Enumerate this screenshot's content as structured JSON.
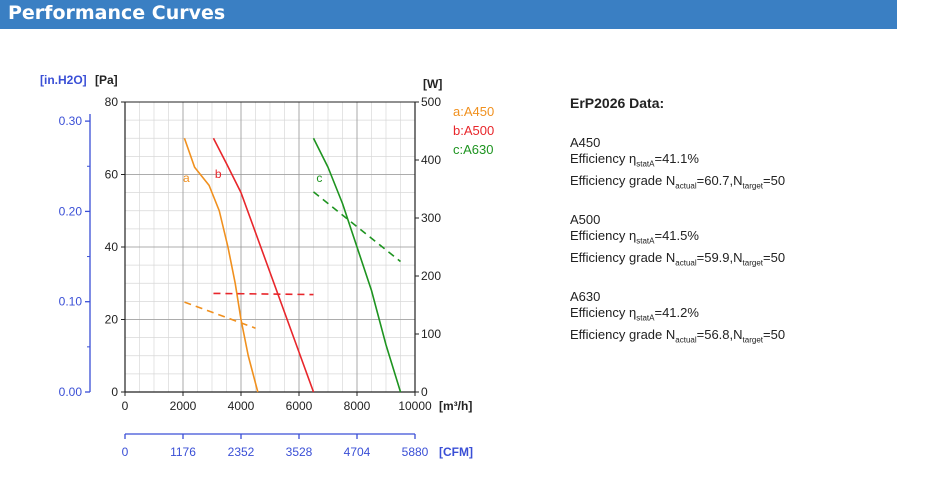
{
  "header": {
    "title": "Performance Curves"
  },
  "chart_data": {
    "type": "line",
    "units": {
      "left_outer": "[in.H2O]",
      "left_inner": "[Pa]",
      "right": "[W]",
      "x": "[m³/h]",
      "x_bottom": "[CFM]"
    },
    "x_ticks": [
      0,
      2000,
      4000,
      6000,
      8000,
      10000
    ],
    "x_tick_labels": [
      "0",
      "2000",
      "4000",
      "6000",
      "8000",
      "10000"
    ],
    "cfm_tick_labels": [
      "0",
      "1176",
      "2352",
      "3528",
      "4704",
      "5880"
    ],
    "pa_ticks": [
      0,
      20,
      40,
      60,
      80
    ],
    "pa_tick_labels": [
      "0",
      "20",
      "40",
      "60",
      "80"
    ],
    "inh2o_ticks": [
      0.0,
      0.1,
      0.2,
      0.3
    ],
    "inh2o_tick_labels": [
      "0.00",
      "0.10",
      "0.20",
      "0.30"
    ],
    "w_ticks": [
      0,
      100,
      200,
      300,
      400,
      500
    ],
    "w_tick_labels": [
      "0",
      "100",
      "200",
      "300",
      "400",
      "500"
    ],
    "xlim": [
      0,
      10000
    ],
    "ylim_pa": [
      0,
      80
    ],
    "ylim_w": [
      0,
      500
    ],
    "grid": true,
    "legend_position": "top-right",
    "series": [
      {
        "name": "a:A450",
        "label": "a",
        "color": "#f0901e",
        "pressure": {
          "x": [
            2050,
            2400,
            2900,
            3250,
            3550,
            3800,
            4000,
            4250,
            4580
          ],
          "y": [
            70,
            62,
            57,
            50,
            40,
            30,
            20,
            10,
            0
          ]
        },
        "power": {
          "x": [
            2050,
            4500
          ],
          "y": [
            155,
            110
          ]
        }
      },
      {
        "name": "b:A500",
        "label": "b",
        "color": "#e8262b",
        "pressure": {
          "x": [
            3050,
            3500,
            4000,
            4500,
            5000,
            5500,
            6000,
            6500
          ],
          "y": [
            70,
            63,
            55,
            44,
            33,
            22,
            11,
            0
          ]
        },
        "power": {
          "x": [
            3050,
            6500
          ],
          "y": [
            170,
            168
          ]
        }
      },
      {
        "name": "c:A630",
        "label": "c",
        "color": "#1e9420",
        "pressure": {
          "x": [
            6500,
            7000,
            7500,
            8000,
            8500,
            9000,
            9500
          ],
          "y": [
            70,
            62,
            52,
            40,
            28,
            13,
            0
          ]
        },
        "power": {
          "x": [
            6500,
            9500
          ],
          "y": [
            345,
            225
          ]
        }
      }
    ]
  },
  "erp": {
    "title": "ErP2026 Data:",
    "items": [
      {
        "model": "A450",
        "eff_prefix": "Efficiency η",
        "eff_sub": "statA",
        "eff_value": "=41.1%",
        "grade_prefix": "Efficiency grade N",
        "n_actual_sub": "actual",
        "n_actual_value": "=60.7,N",
        "n_target_sub": "target",
        "n_target_value": "=50"
      },
      {
        "model": "A500",
        "eff_prefix": "Efficiency η",
        "eff_sub": "statA",
        "eff_value": "=41.5%",
        "grade_prefix": "Efficiency grade N",
        "n_actual_sub": "actual",
        "n_actual_value": "=59.9,N",
        "n_target_sub": "target",
        "n_target_value": "=50"
      },
      {
        "model": "A630",
        "eff_prefix": "Efficiency η",
        "eff_sub": "statA",
        "eff_value": "=41.2%",
        "grade_prefix": "Efficiency grade N",
        "n_actual_sub": "actual",
        "n_actual_value": "=56.8,N",
        "n_target_sub": "target",
        "n_target_value": "=50"
      }
    ]
  }
}
